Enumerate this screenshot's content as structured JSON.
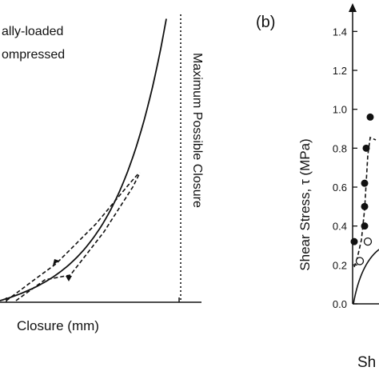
{
  "chart_data": [
    {
      "type": "line",
      "panel_label": "",
      "title": "",
      "xlabel": "Closure (mm)",
      "ylabel": "",
      "legend_lines": [
        "ally-loaded",
        "ompressed"
      ],
      "annotations": [
        {
          "text": "Maximum Possible Closure",
          "orientation": "vertical"
        }
      ],
      "grid": false,
      "series": [
        {
          "style": "solid",
          "role": "loading-curve"
        },
        {
          "style": "dashed",
          "role": "unloading-curve"
        },
        {
          "style": "dashed",
          "role": "reloading-curve"
        },
        {
          "style": "dotted",
          "role": "maximum-closure-line"
        }
      ]
    },
    {
      "type": "scatter",
      "panel_label": "(b)",
      "title": "",
      "xlabel": "Sh",
      "ylabel": "Shear Stress, τ (MPa)",
      "ylim": [
        0.0,
        1.5
      ],
      "y_ticks": [
        "0.0",
        "0.2",
        "0.4",
        "0.6",
        "0.8",
        "1.0",
        "1.2",
        "1.4"
      ],
      "grid": false,
      "series": [
        {
          "marker": "filled-circle",
          "values": [
            0.32,
            0.4,
            0.5,
            0.62,
            0.8,
            0.96
          ]
        },
        {
          "marker": "open-circle",
          "values": [
            0.22,
            0.32
          ]
        }
      ]
    }
  ]
}
